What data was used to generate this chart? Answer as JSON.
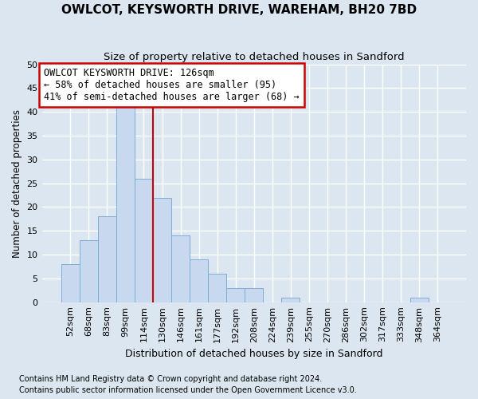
{
  "title": "OWLCOT, KEYSWORTH DRIVE, WAREHAM, BH20 7BD",
  "subtitle": "Size of property relative to detached houses in Sandford",
  "xlabel": "Distribution of detached houses by size in Sandford",
  "ylabel": "Number of detached properties",
  "footnote1": "Contains HM Land Registry data © Crown copyright and database right 2024.",
  "footnote2": "Contains public sector information licensed under the Open Government Licence v3.0.",
  "bar_labels": [
    "52sqm",
    "68sqm",
    "83sqm",
    "99sqm",
    "114sqm",
    "130sqm",
    "146sqm",
    "161sqm",
    "177sqm",
    "192sqm",
    "208sqm",
    "224sqm",
    "239sqm",
    "255sqm",
    "270sqm",
    "286sqm",
    "302sqm",
    "317sqm",
    "333sqm",
    "348sqm",
    "364sqm"
  ],
  "bar_values": [
    8,
    13,
    18,
    41,
    26,
    22,
    14,
    9,
    6,
    3,
    3,
    0,
    1,
    0,
    0,
    0,
    0,
    0,
    0,
    1,
    0
  ],
  "bar_color": "#c8d8ee",
  "bar_edge_color": "#7bafd4",
  "background_color": "#dce6f0",
  "grid_color": "#ffffff",
  "annotation_line1": "OWLCOT KEYSWORTH DRIVE: 126sqm",
  "annotation_line2": "← 58% of detached houses are smaller (95)",
  "annotation_line3": "41% of semi-detached houses are larger (68) →",
  "annotation_box_color": "#ffffff",
  "annotation_box_edge": "#cc0000",
  "vertical_line_x": 4.5,
  "vertical_line_color": "#cc0000",
  "ylim": [
    0,
    50
  ],
  "yticks": [
    0,
    5,
    10,
    15,
    20,
    25,
    30,
    35,
    40,
    45,
    50
  ],
  "title_fontsize": 11,
  "subtitle_fontsize": 9.5,
  "ylabel_fontsize": 8.5,
  "xlabel_fontsize": 9,
  "tick_fontsize": 8,
  "annotation_fontsize": 8.5,
  "footnote_fontsize": 7
}
